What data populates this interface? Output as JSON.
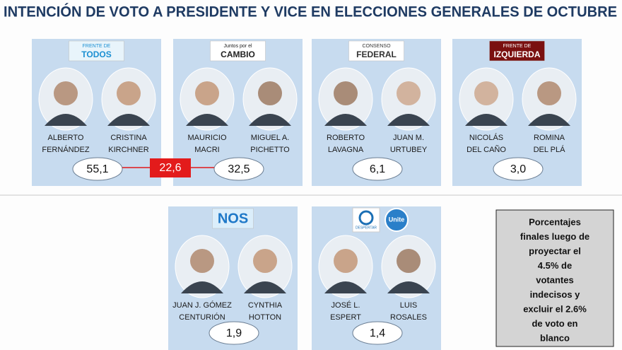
{
  "title": "INTENCIÓN DE VOTO A PRESIDENTE Y VICE EN ELECCIONES GENERALES DE OCTUBRE",
  "parties": [
    {
      "logo": [
        "FRENTE DE",
        "TODOS"
      ],
      "candidates": [
        {
          "name": [
            "ALBERTO",
            "FERNÁNDEZ"
          ]
        },
        {
          "name": [
            "CRISTINA",
            "KIRCHNER"
          ]
        }
      ],
      "percent": "55,1"
    },
    {
      "logo": [
        "Juntos por el",
        "CAMBIO"
      ],
      "candidates": [
        {
          "name": [
            "MAURICIO",
            "MACRI"
          ]
        },
        {
          "name": [
            "MIGUEL A.",
            "PICHETTO"
          ]
        }
      ],
      "percent": "32,5"
    },
    {
      "logo": [
        "CONSENSO",
        "FEDERAL"
      ],
      "candidates": [
        {
          "name": [
            "ROBERTO",
            "LAVAGNA"
          ]
        },
        {
          "name": [
            "JUAN M.",
            "URTUBEY"
          ]
        }
      ],
      "percent": "6,1"
    },
    {
      "logo": [
        "FRENTE DE",
        "IZQUIERDA"
      ],
      "candidates": [
        {
          "name": [
            "NICOLÁS",
            "DEL CAÑO"
          ]
        },
        {
          "name": [
            "ROMINA",
            "DEL PLÁ"
          ]
        }
      ],
      "percent": "3,0"
    },
    {
      "logo": [
        "NOS"
      ],
      "candidates": [
        {
          "name": [
            "JUAN J. GÓMEZ",
            "CENTURIÓN"
          ]
        },
        {
          "name": [
            "CYNTHIA",
            "HOTTON"
          ]
        }
      ],
      "percent": "1,9"
    },
    {
      "logo": [
        "DESPERTAR",
        "Unite"
      ],
      "candidates": [
        {
          "name": [
            "JOSÉ L.",
            "ESPERT"
          ]
        },
        {
          "name": [
            "LUIS",
            "ROSALES"
          ]
        }
      ],
      "percent": "1,4"
    }
  ],
  "gap": "22,6",
  "note": [
    "Porcentajes",
    "finales luego de",
    "proyectar el",
    "4.5%  de",
    "votantes",
    "indecisos y",
    "excluir el 2.6%",
    "de voto en",
    "blanco"
  ]
}
